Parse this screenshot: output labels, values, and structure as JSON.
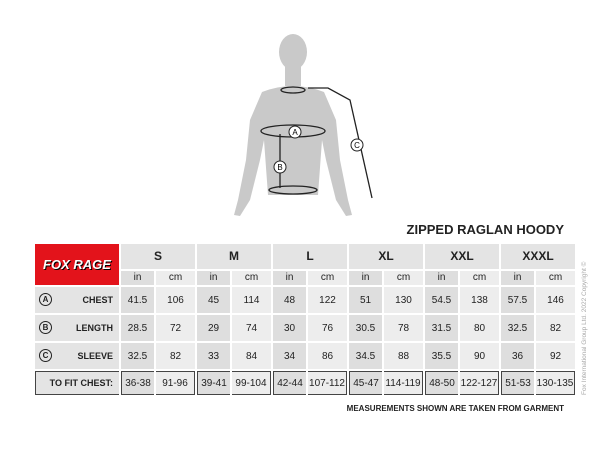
{
  "title": "ZIPPED RAGLAN HOODY",
  "brand": "FOX RAGE",
  "sizes": [
    "S",
    "M",
    "L",
    "XL",
    "XXL",
    "XXXL"
  ],
  "units": [
    "in",
    "cm"
  ],
  "rows": [
    {
      "marker": "A",
      "label": "CHEST",
      "values": [
        "41.5",
        "106",
        "45",
        "114",
        "48",
        "122",
        "51",
        "130",
        "54.5",
        "138",
        "57.5",
        "146"
      ]
    },
    {
      "marker": "B",
      "label": "LENGTH",
      "values": [
        "28.5",
        "72",
        "29",
        "74",
        "30",
        "76",
        "30.5",
        "78",
        "31.5",
        "80",
        "32.5",
        "82"
      ]
    },
    {
      "marker": "C",
      "label": "SLEEVE",
      "values": [
        "32.5",
        "82",
        "33",
        "84",
        "34",
        "86",
        "34.5",
        "88",
        "35.5",
        "90",
        "36",
        "92"
      ]
    }
  ],
  "fit": {
    "label": "TO FIT CHEST:",
    "values": [
      "36-38",
      "91-96",
      "39-41",
      "99-104",
      "42-44",
      "107-112",
      "45-47",
      "114-119",
      "48-50",
      "122-127",
      "51-53",
      "130-135"
    ]
  },
  "note": "MEASUREMENTS SHOWN ARE TAKEN FROM GARMENT",
  "copyright": "Fox International Group Ltd. 2022 Copyright ©",
  "figure_markers": [
    "A",
    "B",
    "C"
  ],
  "colors": {
    "brand_red": "#e3131b"
  }
}
